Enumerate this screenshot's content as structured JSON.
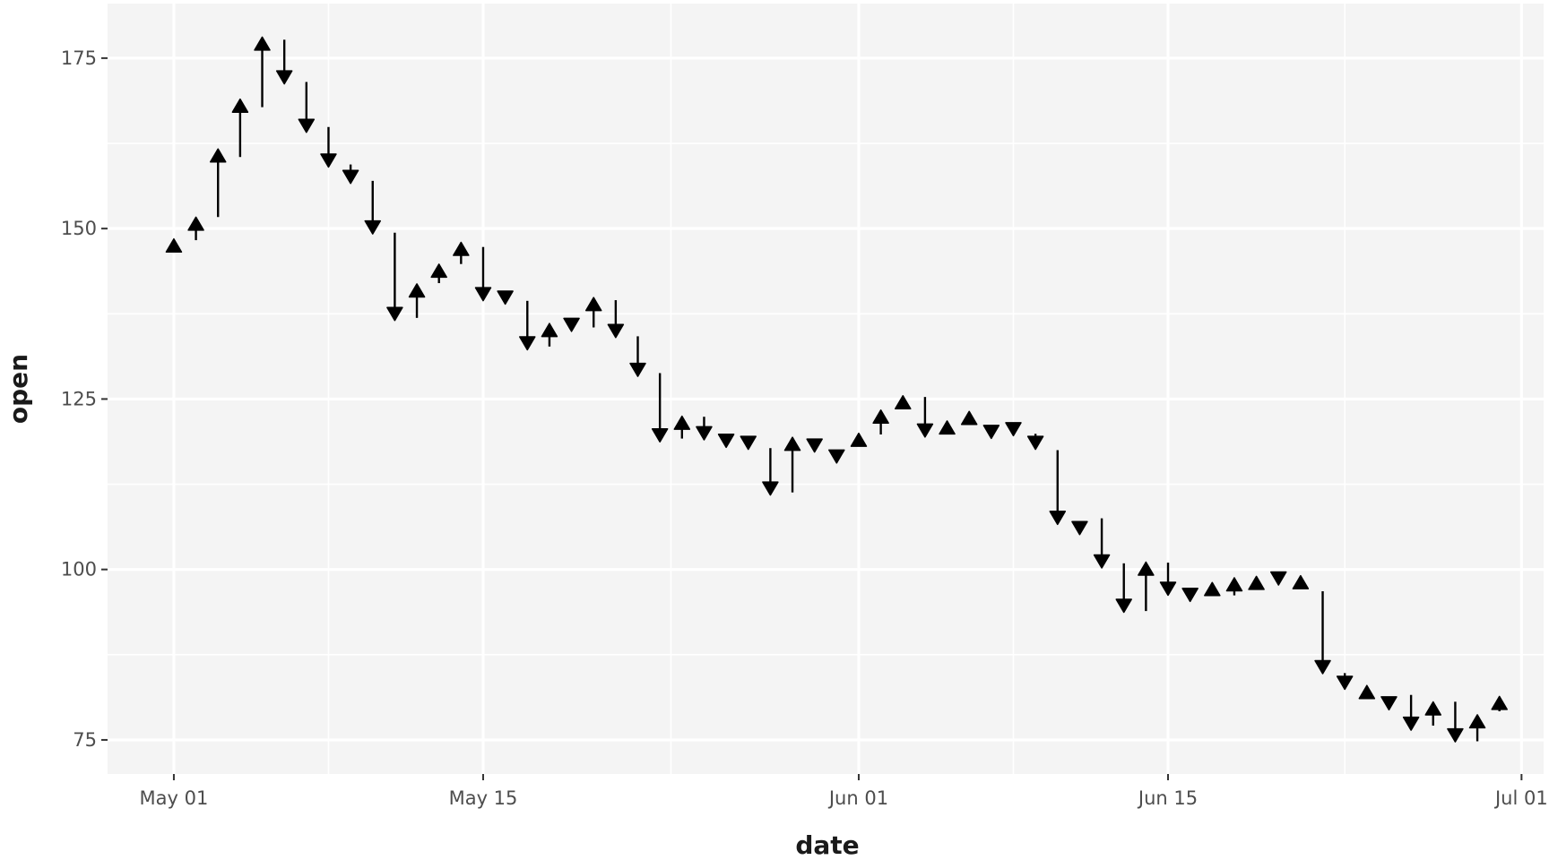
{
  "chart_data": {
    "type": "scatter",
    "title": "",
    "xlabel": "date",
    "ylabel": "open",
    "x_ticks": [
      "May 01",
      "May 15",
      "Jun 01",
      "Jun 15",
      "Jul 01"
    ],
    "x_tick_dates": [
      "2023-05-01",
      "2023-05-15",
      "2023-06-01",
      "2023-06-15",
      "2023-07-01"
    ],
    "y_ticks": [
      75,
      100,
      125,
      150,
      175
    ],
    "xlim": [
      "2023-04-28",
      "2023-07-02"
    ],
    "ylim": [
      70,
      183
    ],
    "grid": true,
    "legend": "none",
    "colors": {
      "panel": "#f4f4f4",
      "grid": "#ffffff",
      "marker": "#000000",
      "tick_label": "#4d4d4d",
      "axis_title": "#1a1a1a"
    },
    "series": [
      {
        "x": [
          "2023-05-01",
          "2023-05-02",
          "2023-05-03",
          "2023-05-04",
          "2023-05-05",
          "2023-05-06",
          "2023-05-07",
          "2023-05-08",
          "2023-05-09",
          "2023-05-10",
          "2023-05-11",
          "2023-05-12",
          "2023-05-13",
          "2023-05-14",
          "2023-05-15",
          "2023-05-16",
          "2023-05-17",
          "2023-05-18",
          "2023-05-19",
          "2023-05-20",
          "2023-05-21",
          "2023-05-22",
          "2023-05-23",
          "2023-05-24",
          "2023-05-25",
          "2023-05-26",
          "2023-05-27",
          "2023-05-28",
          "2023-05-29",
          "2023-05-30",
          "2023-05-31",
          "2023-06-01",
          "2023-06-02",
          "2023-06-03",
          "2023-06-04",
          "2023-06-05",
          "2023-06-06",
          "2023-06-07",
          "2023-06-08",
          "2023-06-09",
          "2023-06-10",
          "2023-06-11",
          "2023-06-12",
          "2023-06-13",
          "2023-06-14",
          "2023-06-15",
          "2023-06-16",
          "2023-06-17",
          "2023-06-18",
          "2023-06-19",
          "2023-06-20",
          "2023-06-21",
          "2023-06-22",
          "2023-06-23",
          "2023-06-24",
          "2023-06-25",
          "2023-06-26",
          "2023-06-27",
          "2023-06-28",
          "2023-06-29",
          "2023-06-30"
        ],
        "open": [
          147.3,
          150.5,
          160.5,
          167.8,
          176.9,
          172.4,
          165.3,
          160.2,
          157.8,
          150.4,
          137.7,
          140.7,
          143.6,
          146.8,
          140.6,
          140.1,
          133.4,
          134.9,
          136.1,
          138.7,
          135.2,
          129.5,
          119.9,
          121.3,
          120.2,
          119.1,
          118.8,
          112.1,
          118.2,
          118.4,
          116.8,
          118.8,
          122.2,
          124.3,
          120.6,
          120.6,
          122.0,
          120.4,
          120.8,
          118.8,
          107.8,
          106.3,
          101.4,
          94.9,
          99.9,
          97.4,
          96.5,
          96.9,
          97.6,
          97.8,
          98.9,
          97.9,
          85.9,
          83.6,
          81.8,
          80.6,
          77.6,
          79.4,
          75.9,
          77.5,
          80.2
        ],
        "prev": [
          147.3,
          148.3,
          151.7,
          160.5,
          167.8,
          177.7,
          171.5,
          164.9,
          159.4,
          157.0,
          149.4,
          136.9,
          142.0,
          144.8,
          147.3,
          140.5,
          139.4,
          132.7,
          136.3,
          135.5,
          139.5,
          134.2,
          128.8,
          119.2,
          122.4,
          119.8,
          119.1,
          117.8,
          111.3,
          118.6,
          117.1,
          118.3,
          119.8,
          123.5,
          125.3,
          120.5,
          121.3,
          121.1,
          121.3,
          119.9,
          117.5,
          106.8,
          107.5,
          100.9,
          93.9,
          101.0,
          96.7,
          96.8,
          96.2,
          97.5,
          99.4,
          97.9,
          96.8,
          84.8,
          81.6,
          81.0,
          81.6,
          77.1,
          80.6,
          74.8,
          79.2
        ]
      }
    ]
  }
}
